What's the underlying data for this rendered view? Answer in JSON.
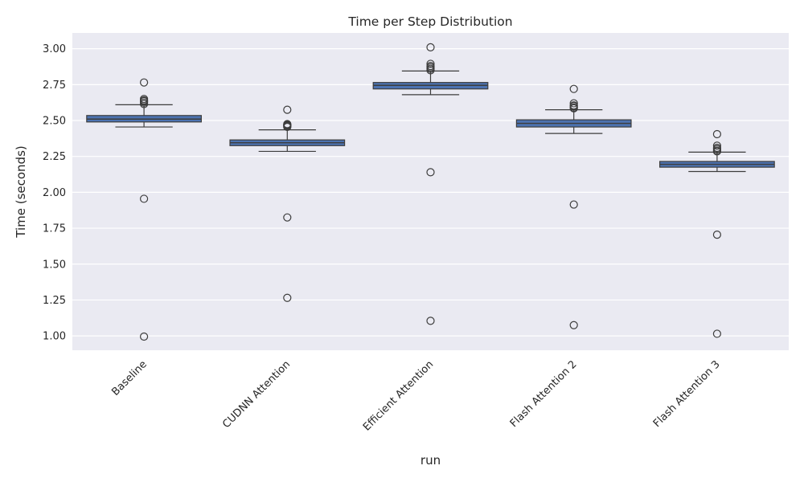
{
  "chart_data": {
    "type": "box",
    "title": "Time per Step Distribution",
    "xlabel": "run",
    "ylabel": "Time (seconds)",
    "ylim": [
      0.9,
      3.11
    ],
    "yticks": [
      "1.00",
      "1.25",
      "1.50",
      "1.75",
      "2.00",
      "2.25",
      "2.50",
      "2.75",
      "3.00"
    ],
    "grid": true,
    "colors": {
      "box": "#4c72b0",
      "line": "#3d3d3d",
      "background": "#eaeaf2",
      "grid": "#ffffff"
    },
    "categories": [
      "Baseline",
      "CUDNN Attention",
      "Efficient Attention",
      "Flash Attention 2",
      "Flash Attention 3"
    ],
    "boxes": [
      {
        "q1": 2.49,
        "median": 2.51,
        "q3": 2.535,
        "whisker_low": 2.455,
        "whisker_high": 2.61,
        "outliers": [
          2.765,
          2.65,
          2.64,
          2.635,
          2.625,
          2.615,
          1.955,
          0.995
        ]
      },
      {
        "q1": 2.325,
        "median": 2.345,
        "q3": 2.365,
        "whisker_low": 2.285,
        "whisker_high": 2.435,
        "outliers": [
          2.575,
          2.475,
          2.47,
          2.465,
          2.46,
          2.455,
          1.825,
          1.265
        ]
      },
      {
        "q1": 2.72,
        "median": 2.745,
        "q3": 2.765,
        "whisker_low": 2.68,
        "whisker_high": 2.845,
        "outliers": [
          3.01,
          2.895,
          2.88,
          2.87,
          2.86,
          2.85,
          2.14,
          1.105
        ]
      },
      {
        "q1": 2.455,
        "median": 2.48,
        "q3": 2.505,
        "whisker_low": 2.41,
        "whisker_high": 2.575,
        "outliers": [
          2.72,
          2.62,
          2.605,
          2.6,
          2.59,
          2.585,
          1.915,
          1.075
        ]
      },
      {
        "q1": 2.175,
        "median": 2.195,
        "q3": 2.215,
        "whisker_low": 2.145,
        "whisker_high": 2.28,
        "outliers": [
          2.405,
          2.325,
          2.31,
          2.3,
          2.29,
          2.285,
          1.705,
          1.015
        ]
      }
    ]
  }
}
